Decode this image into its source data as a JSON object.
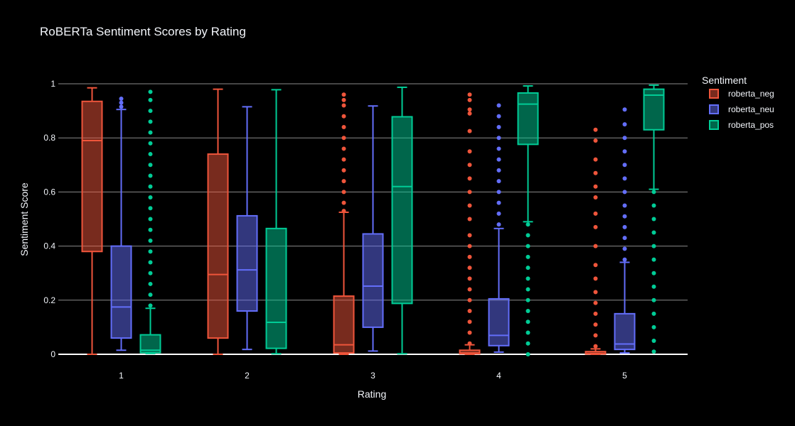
{
  "chart_data": {
    "type": "box",
    "title": "RoBERTa Sentiment Scores by Rating",
    "xlabel": "Rating",
    "ylabel": "Sentiment Score",
    "ylim": [
      0,
      1
    ],
    "yticks": [
      0,
      0.2,
      0.4,
      0.6,
      0.8,
      1
    ],
    "ytick_labels": [
      "0",
      "0.2",
      "0.4",
      "0.6",
      "0.8",
      "1"
    ],
    "categories": [
      "1",
      "2",
      "3",
      "4",
      "5"
    ],
    "grid": true,
    "legend": {
      "title": "Sentiment",
      "position": "top-right"
    },
    "series": [
      {
        "name": "roberta_neg",
        "color": "#ef553b",
        "boxes": [
          {
            "min": 0.0,
            "q1": 0.38,
            "median": 0.79,
            "q3": 0.935,
            "max": 0.985,
            "outliers": []
          },
          {
            "min": 0.0,
            "q1": 0.06,
            "median": 0.295,
            "q3": 0.74,
            "max": 0.98,
            "outliers": []
          },
          {
            "min": 0.0,
            "q1": 0.005,
            "median": 0.035,
            "q3": 0.215,
            "max": 0.525,
            "outliers": [
              0.53,
              0.56,
              0.6,
              0.64,
              0.68,
              0.72,
              0.76,
              0.8,
              0.84,
              0.88,
              0.92,
              0.94,
              0.96
            ]
          },
          {
            "min": 0.0,
            "q1": 0.002,
            "median": 0.005,
            "q3": 0.015,
            "max": 0.035,
            "outliers": [
              0.04,
              0.08,
              0.12,
              0.16,
              0.2,
              0.24,
              0.28,
              0.32,
              0.36,
              0.4,
              0.44,
              0.5,
              0.55,
              0.6,
              0.65,
              0.7,
              0.75,
              0.825,
              0.89,
              0.905,
              0.94,
              0.96
            ]
          },
          {
            "min": 0.0,
            "q1": 0.001,
            "median": 0.003,
            "q3": 0.01,
            "max": 0.02,
            "outliers": [
              0.03,
              0.07,
              0.11,
              0.15,
              0.19,
              0.23,
              0.28,
              0.33,
              0.4,
              0.47,
              0.52,
              0.58,
              0.62,
              0.67,
              0.72,
              0.79,
              0.83
            ]
          }
        ]
      },
      {
        "name": "roberta_neu",
        "color": "#636efa",
        "boxes": [
          {
            "min": 0.015,
            "q1": 0.06,
            "median": 0.175,
            "q3": 0.4,
            "max": 0.905,
            "outliers": [
              0.915,
              0.93,
              0.945
            ]
          },
          {
            "min": 0.018,
            "q1": 0.16,
            "median": 0.312,
            "q3": 0.512,
            "max": 0.915,
            "outliers": []
          },
          {
            "min": 0.012,
            "q1": 0.1,
            "median": 0.252,
            "q3": 0.445,
            "max": 0.918,
            "outliers": []
          },
          {
            "min": 0.008,
            "q1": 0.032,
            "median": 0.07,
            "q3": 0.205,
            "max": 0.465,
            "outliers": [
              0.48,
              0.52,
              0.56,
              0.6,
              0.64,
              0.68,
              0.72,
              0.76,
              0.8,
              0.84,
              0.88,
              0.92
            ]
          },
          {
            "min": 0.005,
            "q1": 0.018,
            "median": 0.038,
            "q3": 0.15,
            "max": 0.34,
            "outliers": [
              0.35,
              0.39,
              0.43,
              0.47,
              0.51,
              0.55,
              0.6,
              0.65,
              0.7,
              0.75,
              0.8,
              0.85,
              0.905
            ]
          }
        ]
      },
      {
        "name": "roberta_pos",
        "color": "#00cc96",
        "boxes": [
          {
            "min": 0.003,
            "q1": 0.006,
            "median": 0.015,
            "q3": 0.072,
            "max": 0.17,
            "outliers": [
              0.18,
              0.22,
              0.26,
              0.3,
              0.34,
              0.38,
              0.42,
              0.46,
              0.5,
              0.54,
              0.58,
              0.62,
              0.66,
              0.7,
              0.74,
              0.78,
              0.82,
              0.86,
              0.9,
              0.94,
              0.97
            ]
          },
          {
            "min": 0.002,
            "q1": 0.022,
            "median": 0.118,
            "q3": 0.465,
            "max": 0.978,
            "outliers": []
          },
          {
            "min": 0.002,
            "q1": 0.188,
            "median": 0.62,
            "q3": 0.878,
            "max": 0.987,
            "outliers": []
          },
          {
            "min": 0.49,
            "q1": 0.776,
            "median": 0.925,
            "q3": 0.966,
            "max": 0.992,
            "outliers": [
              0.0,
              0.04,
              0.08,
              0.12,
              0.16,
              0.2,
              0.24,
              0.28,
              0.32,
              0.36,
              0.4,
              0.44,
              0.48
            ]
          },
          {
            "min": 0.61,
            "q1": 0.83,
            "median": 0.958,
            "q3": 0.98,
            "max": 0.995,
            "outliers": [
              0.01,
              0.05,
              0.1,
              0.15,
              0.2,
              0.25,
              0.3,
              0.35,
              0.4,
              0.45,
              0.5,
              0.55,
              0.6
            ]
          }
        ]
      }
    ]
  }
}
